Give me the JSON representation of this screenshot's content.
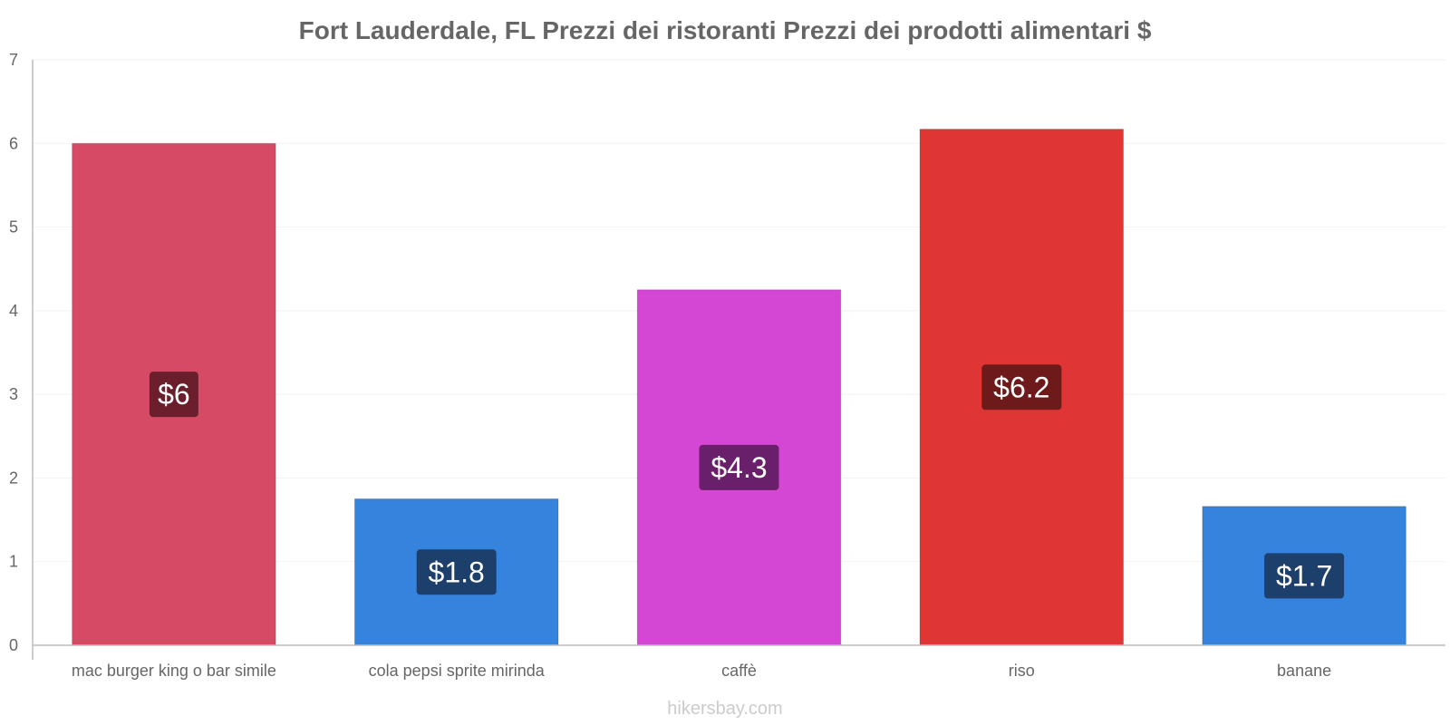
{
  "chart_data": {
    "type": "bar",
    "title": "Fort Lauderdale, FL Prezzi dei ristoranti Prezzi dei prodotti alimentari $",
    "categories": [
      "mac burger king o bar simile",
      "cola pepsi sprite mirinda",
      "caffè",
      "riso",
      "banane"
    ],
    "values": [
      6,
      1.75,
      4.25,
      6.17,
      1.66
    ],
    "value_labels": [
      "$6",
      "$1.8",
      "$4.3",
      "$6.2",
      "$1.7"
    ],
    "ylim": [
      0,
      7
    ],
    "yticks": [
      "0",
      "1",
      "2",
      "3",
      "4",
      "5",
      "6",
      "7"
    ],
    "xlabel": "",
    "ylabel": "",
    "grid": true,
    "bar_colors": [
      "#d64a66",
      "#3683dd",
      "#d447d4",
      "#e03535",
      "#3683dd"
    ],
    "label_colors": [
      "#6b1f2c",
      "#1c3f6b",
      "#6a1f6a",
      "#6f1a1a",
      "#1c3f6b"
    ]
  },
  "watermark": "hikersbay.com"
}
